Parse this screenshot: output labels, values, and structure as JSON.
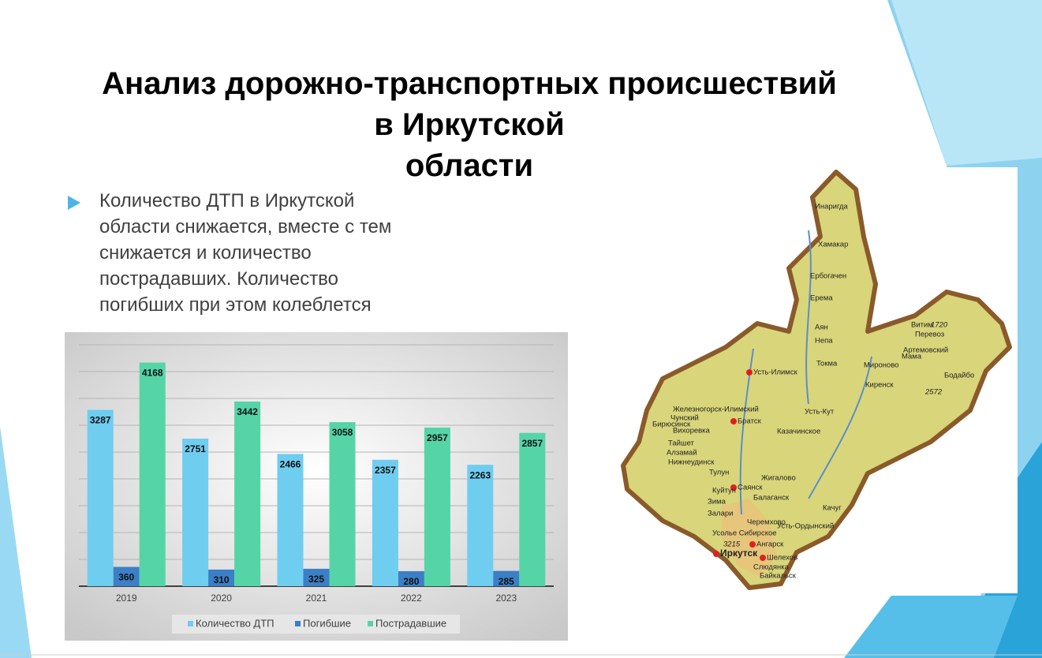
{
  "title_lines": [
    "Анализ дорожно-транспортных происшествий",
    "в Иркутской",
    "области"
  ],
  "bullet": "Количество ДТП в Иркутской области снижается, вместе с тем снижается и количество пострадавших. Количество погибших при этом колеблется",
  "chart_data": {
    "type": "bar",
    "categories": [
      "2019",
      "2020",
      "2021",
      "2022",
      "2023"
    ],
    "series": [
      {
        "name": "Количество ДТП",
        "color": "#6fcdf0",
        "values": [
          3287,
          2751,
          2466,
          2357,
          2263
        ]
      },
      {
        "name": "Погибшие",
        "color": "#3b7fc6",
        "values": [
          360,
          310,
          325,
          280,
          285
        ]
      },
      {
        "name": "Пострадавшие",
        "color": "#55d4a8",
        "values": [
          4168,
          3442,
          3058,
          2957,
          2857
        ]
      }
    ],
    "ylim": [
      0,
      4500
    ],
    "yticks": [
      0,
      500,
      1000,
      1500,
      2000,
      2500,
      3000,
      3500,
      4000,
      4500
    ],
    "show_ytick_labels": false,
    "grid": true,
    "legend": "bottom"
  },
  "map": {
    "labels": [
      "Инаригда",
      "Хамакар",
      "Ербогачен",
      "Ерема",
      "Аян",
      "Непа",
      "Токма",
      "Витим",
      "Перевоз",
      "Мама",
      "Мироново",
      "Артемовский",
      "Бодайбо",
      "Киренск",
      "Усть-Илимск",
      "Железногорск-Илимский",
      "Братск",
      "Усть-Кут",
      "Чунский",
      "Бирюсинск",
      "Вихоревка",
      "Казачинское",
      "Тайшет",
      "Алзамай",
      "Нижнеудинск",
      "Тулун",
      "Жигалово",
      "Саянск",
      "Куйтун",
      "Зима",
      "Балаганск",
      "Качуг",
      "Залари",
      "Черемхово",
      "Усолье Сибирское",
      "Усть-Ордынский",
      "Ангарск",
      "Иркутск",
      "Шелехов",
      "Слюдянка",
      "Байкальск",
      1720,
      2572,
      3215
    ]
  }
}
